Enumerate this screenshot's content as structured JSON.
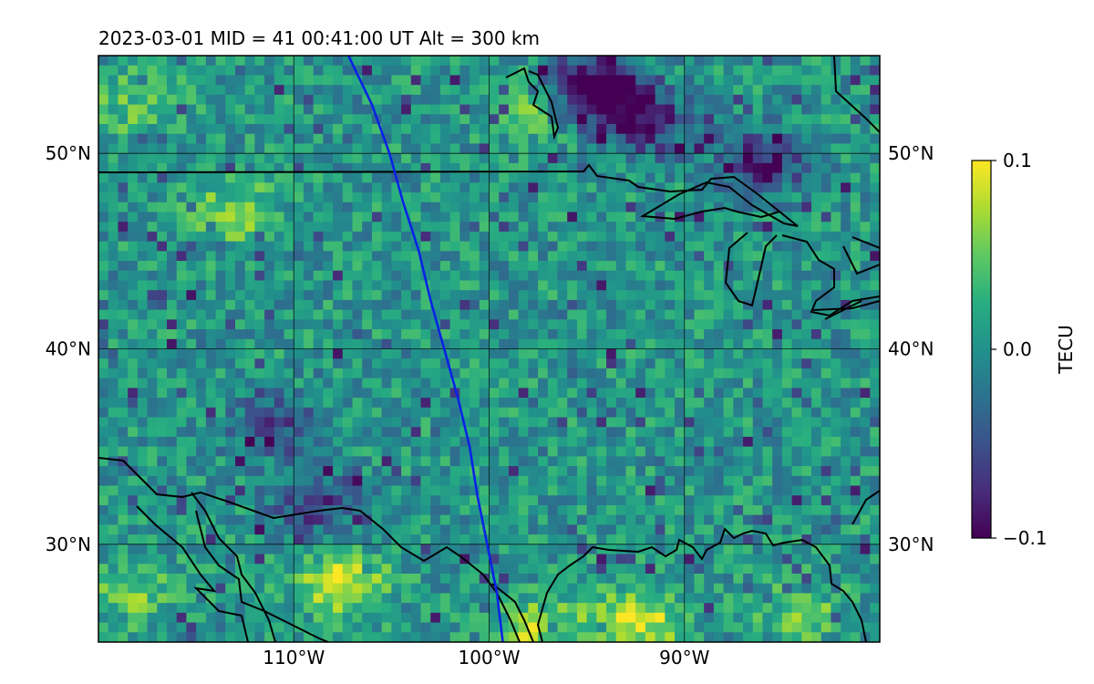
{
  "title": "2023-03-01  MID =  41    00:41:00  UT  Alt = 300 km",
  "map": {
    "lat_range": [
      25,
      55
    ],
    "lon_range": [
      -120,
      -80
    ],
    "lat_ticks": [
      {
        "value": 50,
        "label": "50°N"
      },
      {
        "value": 40,
        "label": "40°N"
      },
      {
        "value": 30,
        "label": "30°N"
      }
    ],
    "lon_ticks": [
      {
        "value": -110,
        "label": "110°W"
      },
      {
        "value": -100,
        "label": "100°W"
      },
      {
        "value": -90,
        "label": "90°W"
      }
    ],
    "grid": true,
    "satellite_track_color": "#0a22e6"
  },
  "colorbar": {
    "label": "TECU",
    "colormap": "viridis",
    "range": [
      -0.1,
      0.1
    ],
    "ticks": [
      {
        "value": 0.1,
        "label": "0.1"
      },
      {
        "value": 0.0,
        "label": "0.0"
      },
      {
        "value": -0.1,
        "label": "−0.1"
      }
    ]
  },
  "chart_data": {
    "type": "heatmap",
    "title": "2023-03-01  MID =  41    00:41:00  UT  Alt = 300 km",
    "x": {
      "label": "",
      "range": [
        -120,
        -80
      ],
      "ticks": [
        "110°W",
        "100°W",
        "90°W"
      ]
    },
    "y": {
      "label": "",
      "range": [
        25,
        55
      ],
      "ticks": [
        "50°N",
        "40°N",
        "30°N"
      ]
    },
    "value_label": "TECU",
    "value_range": [
      -0.1,
      0.1
    ],
    "satellite_track": [
      {
        "lon": -107.2,
        "lat": 55.0
      },
      {
        "lon": -106.0,
        "lat": 52.5
      },
      {
        "lon": -105.1,
        "lat": 50.0
      },
      {
        "lon": -104.4,
        "lat": 47.5
      },
      {
        "lon": -103.6,
        "lat": 45.0
      },
      {
        "lon": -103.0,
        "lat": 42.5
      },
      {
        "lon": -102.3,
        "lat": 40.0
      },
      {
        "lon": -101.6,
        "lat": 37.5
      },
      {
        "lon": -101.0,
        "lat": 35.0
      },
      {
        "lon": -100.6,
        "lat": 32.5
      },
      {
        "lon": -100.1,
        "lat": 30.0
      },
      {
        "lon": -99.6,
        "lat": 27.5
      },
      {
        "lon": -99.3,
        "lat": 25.0
      }
    ],
    "anomaly_regions": [
      {
        "lon": -92.0,
        "lat": 51.5,
        "value": -0.1,
        "name_hint": "northern low"
      },
      {
        "lon": -86.0,
        "lat": 49.5,
        "value": -0.1,
        "name_hint": "northern low"
      },
      {
        "lon": -95.5,
        "lat": 53.5,
        "value": -0.09,
        "name_hint": "northern low"
      },
      {
        "lon": -94.0,
        "lat": 53.0,
        "value": -0.1,
        "name_hint": "northern low"
      },
      {
        "lon": -107.5,
        "lat": 28.0,
        "value": 0.09
      },
      {
        "lon": -92.5,
        "lat": 26.0,
        "value": 0.1
      },
      {
        "lon": -97.5,
        "lat": 25.5,
        "value": 0.08
      },
      {
        "lon": -109.0,
        "lat": 32.0,
        "value": -0.08
      },
      {
        "lon": -111.0,
        "lat": 36.0,
        "value": -0.07
      },
      {
        "lon": -113.0,
        "lat": 47.0,
        "value": 0.06
      },
      {
        "lon": -118.0,
        "lat": 52.5,
        "value": 0.05
      },
      {
        "lon": -97.5,
        "lat": 52.5,
        "value": 0.06
      },
      {
        "lon": -84.0,
        "lat": 26.5,
        "value": 0.05
      },
      {
        "lon": -118.5,
        "lat": 27.5,
        "value": 0.05
      }
    ]
  }
}
